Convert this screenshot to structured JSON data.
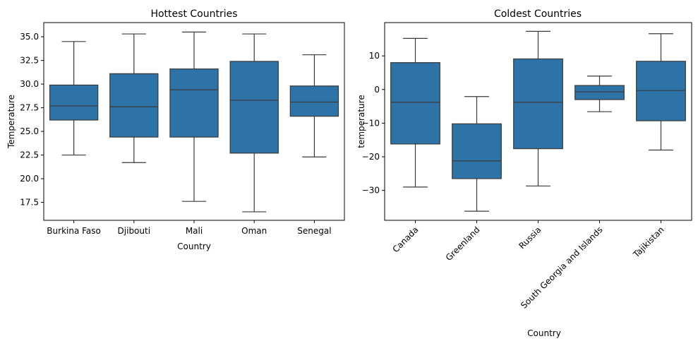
{
  "colors": {
    "box_fill": "#2e73a8",
    "line": "#3a3a3a",
    "axis": "#000000",
    "background": "#ffffff"
  },
  "chart_data": [
    {
      "type": "box",
      "title": "Hottest Countries",
      "xlabel": "Country",
      "ylabel": "Temperature",
      "ylim": [
        15.6,
        36.5
      ],
      "yticks": [
        17.5,
        20.0,
        22.5,
        25.0,
        27.5,
        30.0,
        32.5,
        35.0
      ],
      "ytick_labels": [
        "17.5",
        "20.0",
        "22.5",
        "25.0",
        "27.5",
        "30.0",
        "32.5",
        "35.0"
      ],
      "grid": false,
      "legend": "none",
      "categories": [
        "Burkina Faso",
        "Djibouti",
        "Mali",
        "Oman",
        "Senegal"
      ],
      "boxes": [
        {
          "min": 22.5,
          "q1": 26.2,
          "median": 27.7,
          "q3": 29.9,
          "max": 34.5
        },
        {
          "min": 21.7,
          "q1": 24.4,
          "median": 27.6,
          "q3": 31.1,
          "max": 35.3
        },
        {
          "min": 17.6,
          "q1": 24.4,
          "median": 29.4,
          "q3": 31.6,
          "max": 35.5
        },
        {
          "min": 16.5,
          "q1": 22.7,
          "median": 28.3,
          "q3": 32.4,
          "max": 35.3
        },
        {
          "min": 22.3,
          "q1": 26.6,
          "median": 28.1,
          "q3": 29.8,
          "max": 33.1
        }
      ]
    },
    {
      "type": "box",
      "title": "Coldest Countries",
      "xlabel": "Country",
      "ylabel": "temperature",
      "ylim": [
        -38.9,
        19.9
      ],
      "yticks": [
        -30,
        -20,
        -10,
        0,
        10
      ],
      "ytick_labels": [
        "−30",
        "−20",
        "−10",
        "0",
        "10"
      ],
      "xtick_rotation": 45,
      "grid": false,
      "legend": "none",
      "categories": [
        "Canada",
        "Greenland",
        "Russia",
        "South Georgia and Islands",
        "Tajikistan"
      ],
      "boxes": [
        {
          "min": -29.0,
          "q1": -16.2,
          "median": -3.8,
          "q3": 8.0,
          "max": 15.2
        },
        {
          "min": -36.2,
          "q1": -26.5,
          "median": -21.2,
          "q3": -10.2,
          "max": -2.1
        },
        {
          "min": -28.7,
          "q1": -17.6,
          "median": -3.8,
          "q3": 9.1,
          "max": 17.3
        },
        {
          "min": -6.6,
          "q1": -3.0,
          "median": -0.7,
          "q3": 1.2,
          "max": 4.0
        },
        {
          "min": -18.0,
          "q1": -9.3,
          "median": -0.3,
          "q3": 8.4,
          "max": 16.6
        }
      ]
    }
  ]
}
